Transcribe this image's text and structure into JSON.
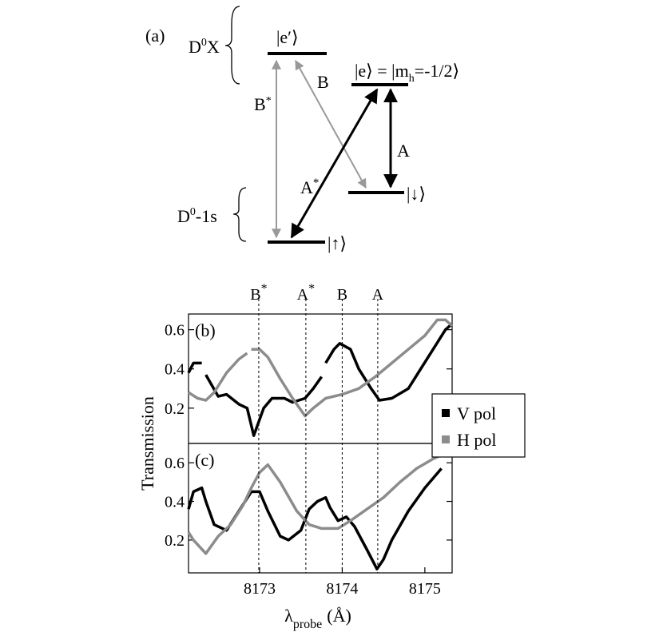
{
  "diagram": {
    "panel_label": "(a)",
    "d0x": {
      "base": "D",
      "sup": "0",
      "rest": "X"
    },
    "d01s": {
      "base": "D",
      "sup": "0",
      "rest": "-1s"
    },
    "levels": {
      "e_prime": "|e′⟩",
      "e": {
        "main": "|e⟩ = |m",
        "sub": "h",
        "rest": "=-1/2⟩"
      },
      "down": "|↓⟩",
      "up": "|↑⟩"
    },
    "arrows": {
      "b_star": {
        "base": "B",
        "sup": "*"
      },
      "b": "B",
      "a_star": {
        "base": "A",
        "sup": "*"
      },
      "a": "A"
    }
  },
  "chart_data": [
    {
      "type": "line",
      "panel_label": "(b)",
      "ylabel": "Transmission",
      "xlim": [
        8172.14,
        8175.33
      ],
      "ylim": [
        0.02,
        0.68
      ],
      "yticks": [
        0.2,
        0.4,
        0.6
      ],
      "legend": "right",
      "vlines": [
        {
          "x": 8172.99,
          "label": "B",
          "sup": "*"
        },
        {
          "x": 8173.56,
          "label": "A",
          "sup": "*"
        },
        {
          "x": 8174.0,
          "label": "B"
        },
        {
          "x": 8174.43,
          "label": "A"
        }
      ],
      "series": [
        {
          "name": "V pol",
          "color": "#000000",
          "x": [
            8172.14,
            8172.2,
            8172.3,
            8172.33,
            8172.35,
            8172.5,
            8172.6,
            8172.75,
            8172.85,
            8172.93,
            8173.05,
            8173.15,
            8173.3,
            8173.4,
            8173.55,
            8173.65,
            8173.75,
            8173.78,
            8173.8,
            8173.9,
            8173.97,
            8174.1,
            8174.2,
            8174.35,
            8174.45,
            8174.6,
            8174.8,
            8174.95,
            8175.1,
            8175.25,
            8175.33
          ],
          "values": [
            0.38,
            0.43,
            0.43,
            null,
            0.37,
            0.26,
            0.27,
            0.22,
            0.2,
            0.06,
            0.2,
            0.25,
            0.25,
            0.23,
            0.25,
            0.3,
            0.36,
            null,
            0.43,
            0.5,
            0.53,
            0.5,
            0.4,
            0.3,
            0.24,
            0.25,
            0.3,
            0.4,
            0.5,
            0.6,
            0.63
          ]
        },
        {
          "name": "H pol",
          "color": "#8c8c8c",
          "x": [
            8172.14,
            8172.25,
            8172.35,
            8172.45,
            8172.6,
            8172.75,
            8172.85,
            8172.88,
            8172.9,
            8173.0,
            8173.1,
            8173.25,
            8173.4,
            8173.55,
            8173.65,
            8173.8,
            8174.0,
            8174.2,
            8174.4,
            8174.6,
            8174.8,
            8175.0,
            8175.15,
            8175.25,
            8175.33
          ],
          "values": [
            0.28,
            0.25,
            0.24,
            0.28,
            0.38,
            0.45,
            0.48,
            null,
            0.5,
            0.5,
            0.46,
            0.35,
            0.25,
            0.16,
            0.2,
            0.25,
            0.27,
            0.3,
            0.36,
            0.43,
            0.5,
            0.57,
            0.65,
            0.65,
            0.62
          ]
        }
      ]
    },
    {
      "type": "line",
      "panel_label": "(c)",
      "xlabel": {
        "symbol": "λ",
        "subscript": "probe",
        "unit": "(Å)"
      },
      "xlim": [
        8172.14,
        8175.33
      ],
      "xticks": [
        8173,
        8174,
        8175
      ],
      "ylim": [
        0.03,
        0.7
      ],
      "yticks": [
        0.2,
        0.4,
        0.6
      ],
      "series": [
        {
          "color": "#000000",
          "x": [
            8172.14,
            8172.2,
            8172.3,
            8172.35,
            8172.45,
            8172.6,
            8172.75,
            8172.9,
            8173.0,
            8173.1,
            8173.25,
            8173.35,
            8173.5,
            8173.6,
            8173.7,
            8173.8,
            8173.85,
            8173.95,
            8174.05,
            8174.15,
            8174.3,
            8174.42,
            8174.5,
            8174.6,
            8174.8,
            8175.0,
            8175.2
          ],
          "values": [
            0.36,
            0.45,
            0.47,
            0.4,
            0.28,
            0.25,
            0.35,
            0.45,
            0.45,
            0.35,
            0.22,
            0.2,
            0.25,
            0.36,
            0.4,
            0.42,
            0.37,
            0.3,
            0.32,
            0.27,
            0.15,
            0.05,
            0.1,
            0.2,
            0.35,
            0.47,
            0.57
          ]
        },
        {
          "color": "#8c8c8c",
          "x": [
            8172.14,
            8172.2,
            8172.35,
            8172.5,
            8172.65,
            8172.8,
            8172.9,
            8173.0,
            8173.1,
            8173.25,
            8173.45,
            8173.6,
            8173.75,
            8173.95,
            8174.1,
            8174.3,
            8174.5,
            8174.7,
            8174.9,
            8175.1,
            8175.25
          ],
          "values": [
            0.24,
            0.2,
            0.13,
            0.22,
            0.28,
            0.38,
            0.47,
            0.55,
            0.59,
            0.5,
            0.35,
            0.28,
            0.26,
            0.26,
            0.3,
            0.36,
            0.42,
            0.5,
            0.57,
            0.62,
            0.65
          ]
        }
      ]
    }
  ]
}
